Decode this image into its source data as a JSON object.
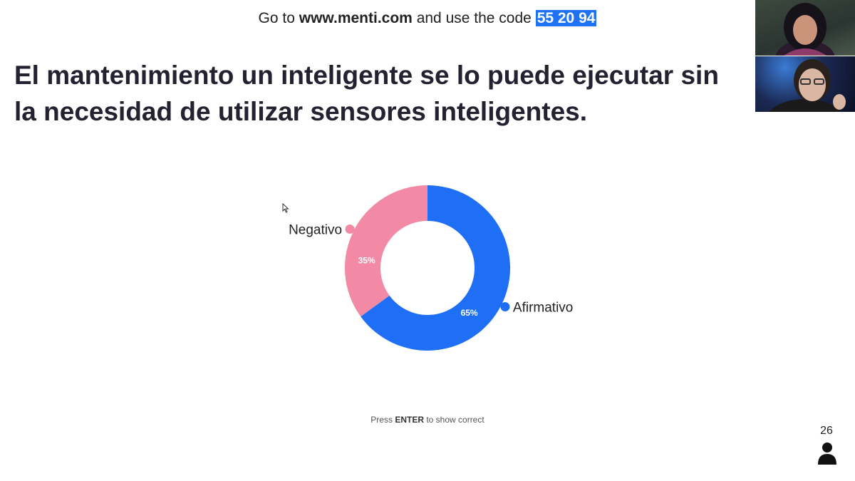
{
  "header": {
    "prefix": "Go to",
    "site": "www.menti.com",
    "middle": "and use the code",
    "code": "55 20 94"
  },
  "question": "El mantenimiento un inteligente se lo puede ejecutar sin la necesidad de utilizar sensores inteligentes.",
  "chart_data": {
    "type": "pie",
    "donut": true,
    "categories": [
      "Afirmativo",
      "Negativo"
    ],
    "values": [
      65,
      35
    ],
    "value_labels": [
      "65%",
      "35%"
    ],
    "colors": [
      "#1e6ff5",
      "#f28aa6"
    ]
  },
  "footer": {
    "press_prefix": "Press",
    "press_key": "ENTER",
    "press_suffix": "to show correct",
    "participant_count": "26"
  },
  "icons": {
    "participants": "person-icon",
    "pointer": "cursor-icon"
  }
}
